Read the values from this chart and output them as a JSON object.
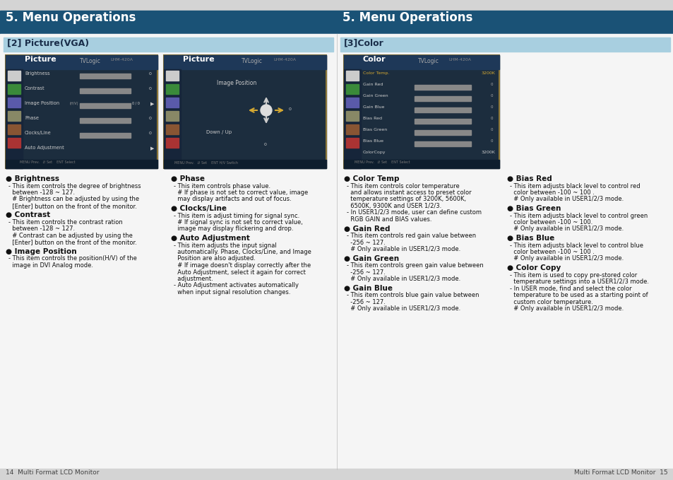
{
  "bg_color": "#d4d4d4",
  "content_bg": "#f0f0f0",
  "header_color": "#1a5276",
  "header_text_color": "#ffffff",
  "subheader_color": "#a8cfe0",
  "subheader_text_color": "#1a2e4a",
  "text_color": "#111111",
  "footer_text": "#444444",
  "page_header": "5. Menu Operations",
  "left_section_title": "[2] Picture(VGA)",
  "right_section_title": "[3]Color",
  "footer_left": "14  Multi Format LCD Monitor",
  "footer_right": "Multi Format LCD Monitor  15"
}
